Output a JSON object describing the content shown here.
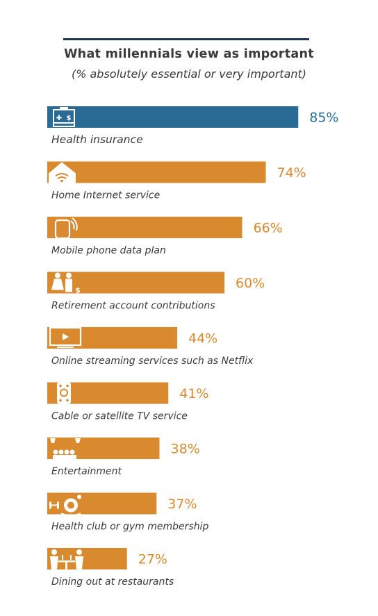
{
  "chart_data": {
    "type": "bar",
    "orientation": "horizontal",
    "title": "What millennials view as important",
    "subtitle": "(% absolutely essential or very important)",
    "unit": "%",
    "xlim": [
      0,
      100
    ],
    "categories": [
      "Health insurance",
      "Home Internet service",
      "Mobile phone data plan",
      "Retirement account contributions",
      "Online streaming services such as Netflix",
      "Cable or satellite TV service",
      "Entertainment",
      "Health club or gym membership",
      "Dining out at restaurants"
    ],
    "values": [
      85,
      74,
      66,
      60,
      44,
      41,
      38,
      37,
      27
    ],
    "value_labels": [
      "85%",
      "74%",
      "66%",
      "60%",
      "44%",
      "41%",
      "38%",
      "37%",
      "27%"
    ],
    "icons": [
      "medical-kit-icon",
      "home-wifi-icon",
      "mobile-phone-icon",
      "couple-money-icon",
      "tv-play-icon",
      "remote-control-icon",
      "theater-audience-icon",
      "gym-weights-icon",
      "dining-couple-icon"
    ],
    "highlight_index": 0,
    "colors": {
      "highlight": "#2a6b96",
      "default": "#d98a2e",
      "label": "#3a3a3a",
      "rule": "#1f3653"
    }
  }
}
